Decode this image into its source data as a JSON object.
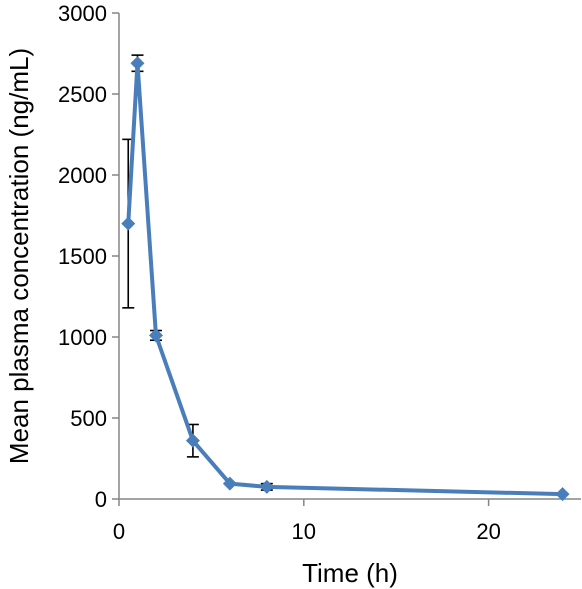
{
  "chart_data": {
    "type": "line",
    "title": "",
    "xlabel": "Time (h)",
    "ylabel": "Mean plasma concentration (ng/mL)",
    "xlim": [
      0,
      25
    ],
    "ylim": [
      0,
      3000
    ],
    "xticks": [
      0,
      10,
      20
    ],
    "yticks": [
      0,
      500,
      1000,
      1500,
      2000,
      2500,
      3000
    ],
    "grid": false,
    "legend": "none",
    "series": [
      {
        "color": "#4a7ebb",
        "marker": "diamond",
        "x": [
          0.5,
          1,
          2,
          4,
          6,
          8,
          24
        ],
        "y": [
          1700,
          2690,
          1010,
          360,
          95,
          75,
          30
        ],
        "error": [
          520,
          50,
          30,
          100,
          0,
          20,
          0
        ]
      }
    ]
  }
}
